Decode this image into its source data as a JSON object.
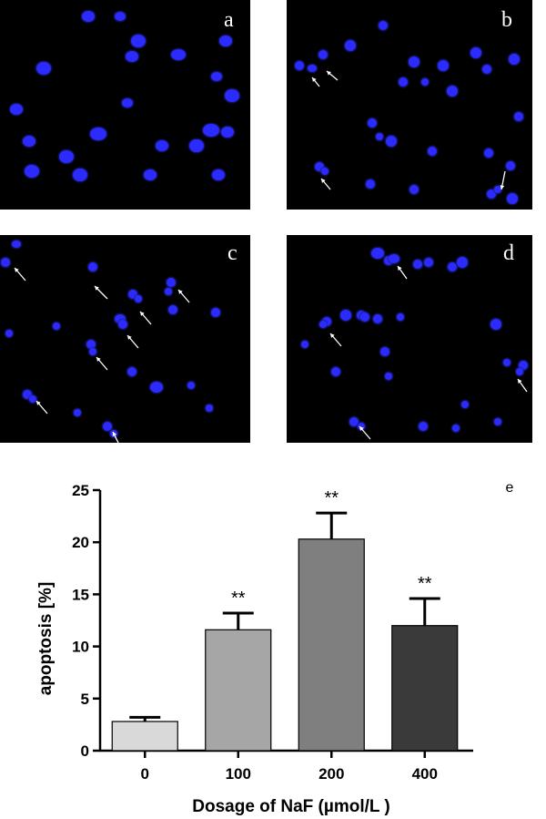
{
  "panels": [
    {
      "label": "a"
    },
    {
      "label": "b"
    },
    {
      "label": "c"
    },
    {
      "label": "d"
    }
  ],
  "panel_e_label": "e",
  "chart_data": {
    "type": "bar",
    "categories": [
      "0",
      "100",
      "200",
      "400"
    ],
    "values": [
      2.8,
      11.6,
      20.3,
      12.0
    ],
    "errors": [
      0.4,
      1.6,
      2.5,
      2.6
    ],
    "significance": [
      "",
      "**",
      "**",
      "**"
    ],
    "bar_colors": [
      "#d9d9d9",
      "#a6a6a6",
      "#7f7f7f",
      "#3a3a3a"
    ],
    "xlabel": "Dosage of NaF (µmol/L )",
    "ylabel": "apoptosis [%]",
    "ylim": [
      0,
      25
    ],
    "yticks": [
      0,
      5,
      10,
      15,
      20,
      25
    ],
    "grid": false
  }
}
